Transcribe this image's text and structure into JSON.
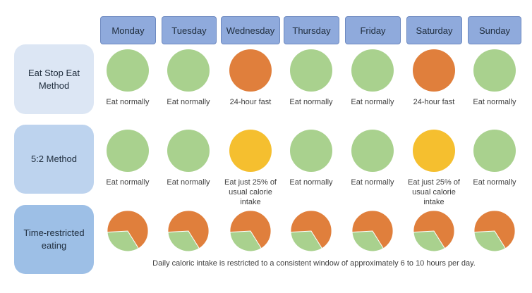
{
  "days": [
    "Monday",
    "Tuesday",
    "Wednesday",
    "Thursday",
    "Friday",
    "Saturday",
    "Sunday"
  ],
  "methods": [
    {
      "label": "Eat Stop Eat Method",
      "cells": [
        {
          "color": "green",
          "caption": "Eat normally"
        },
        {
          "color": "green",
          "caption": "Eat normally"
        },
        {
          "color": "orange",
          "caption": "24-hour fast"
        },
        {
          "color": "green",
          "caption": "Eat normally"
        },
        {
          "color": "green",
          "caption": "Eat normally"
        },
        {
          "color": "orange",
          "caption": "24-hour fast"
        },
        {
          "color": "green",
          "caption": "Eat normally"
        }
      ]
    },
    {
      "label": "5:2 Method",
      "cells": [
        {
          "color": "green",
          "caption": "Eat normally"
        },
        {
          "color": "green",
          "caption": "Eat normally"
        },
        {
          "color": "yellow",
          "caption": "Eat just 25% of usual calorie intake"
        },
        {
          "color": "green",
          "caption": "Eat normally"
        },
        {
          "color": "green",
          "caption": "Eat normally"
        },
        {
          "color": "yellow",
          "caption": "Eat just 25% of usual calorie intake"
        },
        {
          "color": "green",
          "caption": "Eat normally"
        }
      ]
    },
    {
      "label": "Time-restricted eating",
      "pie_eating_share": 0.33,
      "note": "Daily caloric intake is restricted to a consistent window of approximately 6 to 10 hours per day."
    }
  ],
  "colors": {
    "day_header": "#8faadc",
    "eat": "#a9d18e",
    "fast": "#e07f3c",
    "reduced": "#f5bf2f"
  }
}
